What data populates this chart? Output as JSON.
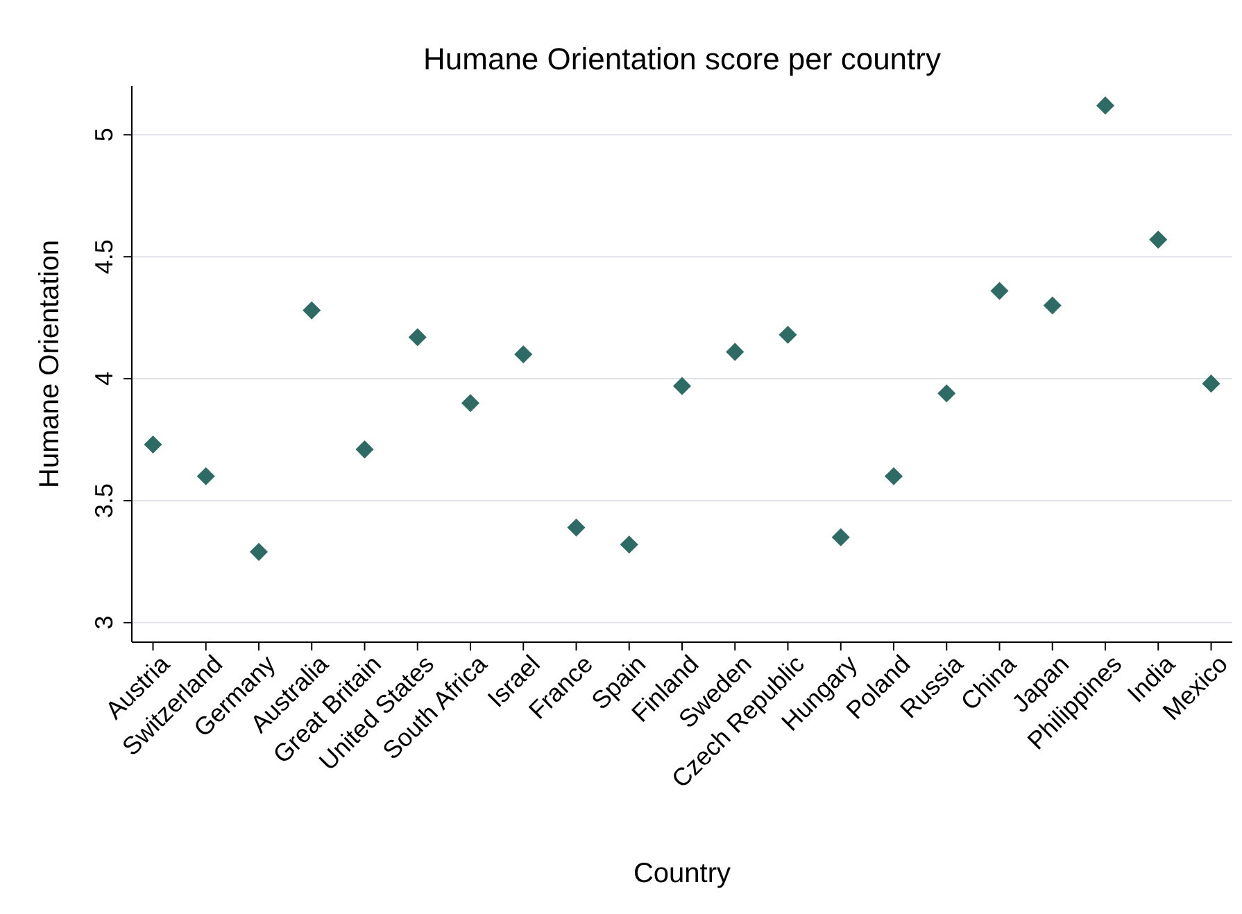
{
  "chart_data": {
    "type": "scatter",
    "title": "Humane Orientation score per country",
    "xlabel": "Country",
    "ylabel": "Humane Orientation",
    "categories": [
      "Austria",
      "Switzerland",
      "Germany",
      "Australia",
      "Great Britain",
      "United States",
      "South Africa",
      "Israel",
      "France",
      "Spain",
      "Finland",
      "Sweden",
      "Czech Republic",
      "Hungary",
      "Poland",
      "Russia",
      "China",
      "Japan",
      "Philippines",
      "India",
      "Mexico"
    ],
    "series": [
      {
        "color": "#2e6b64",
        "values": [
          3.73,
          3.6,
          3.29,
          4.28,
          3.71,
          4.17,
          3.9,
          4.1,
          3.39,
          3.32,
          3.97,
          4.11,
          4.18,
          3.35,
          3.6,
          3.94,
          4.36,
          4.3,
          5.12,
          4.57,
          3.98
        ]
      }
    ],
    "ylim": [
      2.92,
      5.2
    ],
    "yticks": [
      3,
      3.5,
      4,
      4.5,
      5
    ],
    "grid": "y",
    "marker": "diamond"
  }
}
